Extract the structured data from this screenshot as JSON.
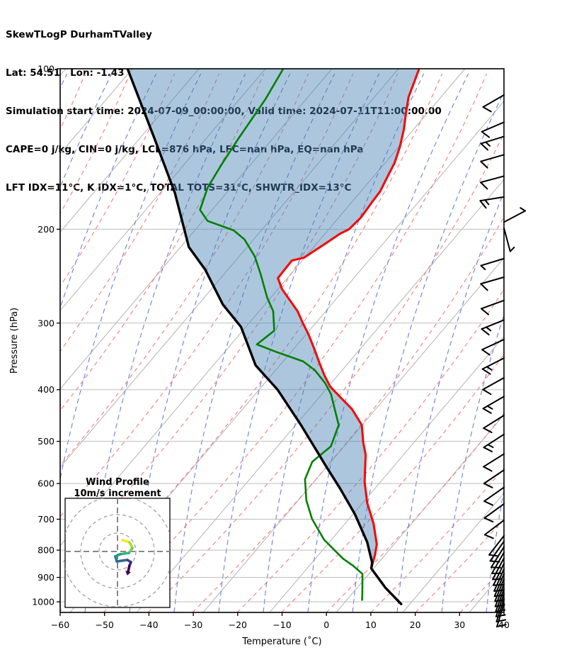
{
  "header": {
    "lines": [
      "SkewTLogP DurhamTValley",
      "Lat: 54.51   Lon: -1.43",
      "Simulation start time: 2024-07-09_00:00:00, Valid time: 2024-07-11T11:00:00.00",
      "CAPE=0 j/kg, CIN=0 j/kg, LCL=876 hPa, LFC=nan hPa, EQ=nan hPa",
      "LFT IDX=11°C, K IDX=1°C, TOTAL TOTS=31°C, SHWTR_IDX=13°C"
    ]
  },
  "axes": {
    "x_label": "Temperature (˚C)",
    "y_label": "Pressure (hPa)",
    "x_ticks": [
      -60,
      -50,
      -40,
      -30,
      -20,
      -10,
      0,
      10,
      20,
      30,
      40
    ],
    "x_tick_labels": [
      "−60",
      "−50",
      "−40",
      "−30",
      "−20",
      "−10",
      "0",
      "10",
      "20",
      "30",
      "40"
    ],
    "y_ticks": [
      100,
      200,
      300,
      400,
      500,
      600,
      700,
      800,
      900,
      1000
    ],
    "y_tick_labels": [
      "100",
      "200",
      "300",
      "400",
      "500",
      "600",
      "700",
      "800",
      "900",
      "1000"
    ]
  },
  "inset": {
    "title_line1": "Wind Profile",
    "title_line2": "10m/s increment"
  },
  "style": {
    "temperature_color": "#ff0000",
    "dewpoint_color": "#008000",
    "parcel_color": "#000000",
    "shade_color": "rgba(70,130,180,0.45)",
    "isotherm_color": "#b3b3b3",
    "gridline_color": "#bdbdbd",
    "dry_adiabat_color": "#f47c7c",
    "moist_adiabat_color": "#6b7fd9",
    "barb_color": "#000000",
    "hodo_circle_color": "#999999",
    "hodo_cross_color": "#888888",
    "arrow_color": "#440154",
    "viridis": [
      "#fde725",
      "#b5de2b",
      "#6ece58",
      "#35b779",
      "#1f9e89",
      "#26828e",
      "#31688e",
      "#3e4989",
      "#482878",
      "#440154"
    ]
  },
  "chart_data": {
    "type": "skewt_logp",
    "title": "SkewTLogP DurhamTValley",
    "pressure_unit": "hPa",
    "temperature_unit": "degC",
    "p_top": 100,
    "p_bottom": 1047,
    "xlim": [
      -60,
      40
    ],
    "temperature": [
      [
        100,
        -67.2
      ],
      [
        105,
        -66.3
      ],
      [
        113,
        -65.0
      ],
      [
        121,
        -63.0
      ],
      [
        130,
        -60.8
      ],
      [
        140,
        -58.9
      ],
      [
        150,
        -57.5
      ],
      [
        160,
        -56.8
      ],
      [
        170,
        -56.1
      ],
      [
        177,
        -56.2
      ],
      [
        190,
        -56.2
      ],
      [
        200,
        -57.0
      ],
      [
        204,
        -58.3
      ],
      [
        213,
        -60.0
      ],
      [
        226,
        -62.5
      ],
      [
        229,
        -64.8
      ],
      [
        247,
        -65.1
      ],
      [
        259,
        -62.4
      ],
      [
        269,
        -59.6
      ],
      [
        285,
        -55.3
      ],
      [
        299,
        -52.4
      ],
      [
        315,
        -49.1
      ],
      [
        335,
        -45.5
      ],
      [
        357,
        -41.9
      ],
      [
        377,
        -38.7
      ],
      [
        395,
        -35.7
      ],
      [
        412,
        -32.0
      ],
      [
        435,
        -27.2
      ],
      [
        466,
        -22.4
      ],
      [
        503,
        -19.2
      ],
      [
        530,
        -16.7
      ],
      [
        595,
        -12.6
      ],
      [
        652,
        -8.6
      ],
      [
        713,
        -3.8
      ],
      [
        780,
        0.3
      ],
      [
        816,
        1.6
      ],
      [
        866,
        3.0
      ],
      [
        940,
        9.2
      ],
      [
        1010,
        15.5
      ]
    ],
    "dewpoint": [
      [
        100,
        -97.8
      ],
      [
        114,
        -96.9
      ],
      [
        135,
        -96.6
      ],
      [
        151,
        -96.2
      ],
      [
        167,
        -95.6
      ],
      [
        184,
        -93.7
      ],
      [
        193,
        -90.2
      ],
      [
        201,
        -82.8
      ],
      [
        209,
        -78.9
      ],
      [
        225,
        -73.8
      ],
      [
        243,
        -69.6
      ],
      [
        269,
        -64.3
      ],
      [
        285,
        -60.8
      ],
      [
        310,
        -57.4
      ],
      [
        329,
        -59.1
      ],
      [
        340,
        -53.4
      ],
      [
        354,
        -45.9
      ],
      [
        368,
        -41.8
      ],
      [
        389,
        -37.4
      ],
      [
        408,
        -34.3
      ],
      [
        434,
        -31.2
      ],
      [
        466,
        -27.6
      ],
      [
        511,
        -25.9
      ],
      [
        546,
        -27.6
      ],
      [
        589,
        -26.4
      ],
      [
        645,
        -22.7
      ],
      [
        699,
        -18.4
      ],
      [
        765,
        -12.3
      ],
      [
        830,
        -5.0
      ],
      [
        857,
        -1.4
      ],
      [
        887,
        1.9
      ],
      [
        967,
        5.1
      ],
      [
        992,
        6.0
      ]
    ],
    "parcel": [
      [
        100,
        -132.9
      ],
      [
        135,
        -115.6
      ],
      [
        171,
        -102.1
      ],
      [
        216,
        -90.2
      ],
      [
        238,
        -82.9
      ],
      [
        277,
        -73.2
      ],
      [
        305,
        -65.5
      ],
      [
        360,
        -56.0
      ],
      [
        400,
        -47.1
      ],
      [
        466,
        -36.1
      ],
      [
        503,
        -30.8
      ],
      [
        555,
        -24.0
      ],
      [
        613,
        -17.0
      ],
      [
        685,
        -9.5
      ],
      [
        773,
        -2.2
      ],
      [
        844,
        2.2
      ],
      [
        866,
        3.0
      ],
      [
        940,
        9.2
      ],
      [
        1010,
        15.5
      ]
    ],
    "lcl_hPa": 876,
    "wind_barbs": [
      {
        "p": 112,
        "angle": 210,
        "full": 1,
        "half": 0
      },
      {
        "p": 126,
        "angle": 203,
        "full": 1,
        "half": 0
      },
      {
        "p": 134,
        "angle": 197,
        "full": 1,
        "half": 1
      },
      {
        "p": 145,
        "angle": 196,
        "full": 1,
        "half": 0
      },
      {
        "p": 159,
        "angle": 195,
        "full": 1,
        "half": 0
      },
      {
        "p": 174,
        "angle": 189,
        "full": 1,
        "half": 1
      },
      {
        "p": 194,
        "angle": 28,
        "full": 0,
        "half": 1
      },
      {
        "p": 199,
        "angle": 285,
        "full": 0,
        "half": 1
      },
      {
        "p": 227,
        "angle": 197,
        "full": 0,
        "half": 1
      },
      {
        "p": 246,
        "angle": 196,
        "full": 1,
        "half": 0
      },
      {
        "p": 272,
        "angle": 200,
        "full": 1,
        "half": 0
      },
      {
        "p": 296,
        "angle": 202,
        "full": 1,
        "half": 1
      },
      {
        "p": 322,
        "angle": 205,
        "full": 1,
        "half": 0
      },
      {
        "p": 349,
        "angle": 207,
        "full": 1,
        "half": 1
      },
      {
        "p": 380,
        "angle": 209,
        "full": 1,
        "half": 0
      },
      {
        "p": 412,
        "angle": 210,
        "full": 1,
        "half": 1
      },
      {
        "p": 447,
        "angle": 212,
        "full": 1,
        "half": 0
      },
      {
        "p": 485,
        "angle": 213,
        "full": 1,
        "half": 1
      },
      {
        "p": 528,
        "angle": 212,
        "full": 1,
        "half": 0
      },
      {
        "p": 566,
        "angle": 214,
        "full": 1,
        "half": 0
      },
      {
        "p": 610,
        "angle": 215,
        "full": 1,
        "half": 0
      },
      {
        "p": 655,
        "angle": 216,
        "full": 1,
        "half": 0
      },
      {
        "p": 703,
        "angle": 217,
        "full": 1,
        "half": 0
      },
      {
        "p": 752,
        "angle": 232,
        "full": 1,
        "half": 0
      },
      {
        "p": 770,
        "angle": 235,
        "full": 1,
        "half": 0
      },
      {
        "p": 789,
        "angle": 238,
        "full": 1,
        "half": 0
      },
      {
        "p": 808,
        "angle": 240,
        "full": 1,
        "half": 0
      },
      {
        "p": 828,
        "angle": 242,
        "full": 1,
        "half": 0
      },
      {
        "p": 848,
        "angle": 244,
        "full": 1,
        "half": 0
      },
      {
        "p": 868,
        "angle": 246,
        "full": 1,
        "half": 0
      },
      {
        "p": 887,
        "angle": 247,
        "full": 1,
        "half": 0
      },
      {
        "p": 906,
        "angle": 248,
        "full": 1,
        "half": 0
      },
      {
        "p": 926,
        "angle": 249,
        "full": 1,
        "half": 0
      },
      {
        "p": 946,
        "angle": 250,
        "full": 1,
        "half": 0
      },
      {
        "p": 966,
        "angle": 251,
        "full": 1,
        "half": 0
      },
      {
        "p": 987,
        "angle": 252,
        "full": 1,
        "half": 0
      },
      {
        "p": 1008,
        "angle": 253,
        "full": 1,
        "half": 0
      }
    ],
    "hodograph_uv_ms": [
      [
        2.7,
        6.2
      ],
      [
        6.5,
        5.0
      ],
      [
        8.1,
        1.9
      ],
      [
        6.2,
        -0.8
      ],
      [
        1.5,
        -1.5
      ],
      [
        -1.2,
        -2.7
      ],
      [
        -0.4,
        -5.4
      ],
      [
        5.4,
        -4.6
      ],
      [
        7.3,
        -5.8
      ],
      [
        6.5,
        -7.7
      ],
      [
        5.8,
        -10.8
      ]
    ],
    "hodograph_ring_increment_ms": 10
  }
}
